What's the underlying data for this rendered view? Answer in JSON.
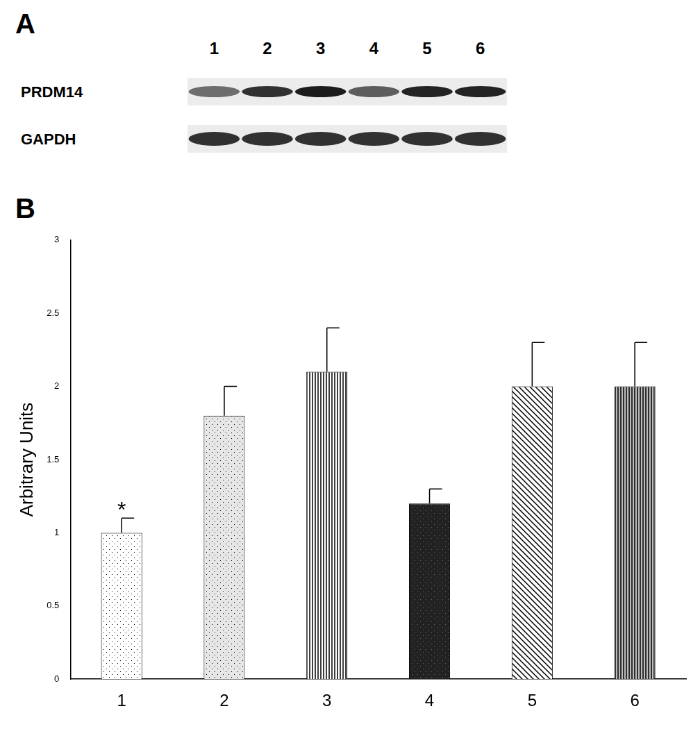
{
  "panel_labels": [
    "A",
    "B"
  ],
  "blot": {
    "lanes": [
      1,
      2,
      3,
      4,
      5,
      6
    ],
    "rows": [
      "PRDM14",
      "GAPDH"
    ]
  },
  "chart_data": {
    "type": "bar",
    "categories": [
      "1",
      "2",
      "3",
      "4",
      "5",
      "6"
    ],
    "values": [
      1.0,
      1.8,
      2.1,
      1.2,
      2.0,
      2.0
    ],
    "errors": [
      0.1,
      0.2,
      0.3,
      0.1,
      0.3,
      0.3
    ],
    "colors": [
      "#ffffff",
      "#e6e6e6",
      "#ffffff",
      "#222222",
      "#ffffff",
      "#bbbbbb"
    ],
    "y_label": "Arbitrary Units",
    "ylim": [
      0,
      3
    ],
    "yticks": [
      0,
      0.5,
      1,
      1.5,
      2,
      2.5,
      3
    ],
    "grid": false,
    "annotations": [
      {
        "category": "1",
        "text": "*"
      }
    ]
  }
}
